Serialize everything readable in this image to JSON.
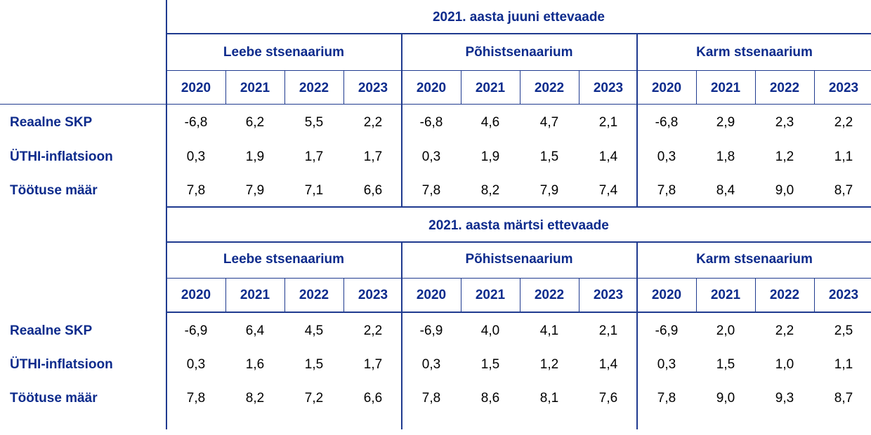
{
  "columns": {
    "years": [
      "2020",
      "2021",
      "2022",
      "2023"
    ],
    "scenarios": [
      "Leebe stsenaarium",
      "Põhistsenaarium",
      "Karm stsenaarium"
    ]
  },
  "row_labels": [
    "Reaalne SKP",
    "ÜTHI-inflatsioon",
    "Töötuse määr"
  ],
  "sections": [
    {
      "title": "2021. aasta juuni ettevaade",
      "rows": [
        [
          "-6,8",
          "6,2",
          "5,5",
          "2,2",
          "-6,8",
          "4,6",
          "4,7",
          "2,1",
          "-6,8",
          "2,9",
          "2,3",
          "2,2"
        ],
        [
          "0,3",
          "1,9",
          "1,7",
          "1,7",
          "0,3",
          "1,9",
          "1,5",
          "1,4",
          "0,3",
          "1,8",
          "1,2",
          "1,1"
        ],
        [
          "7,8",
          "7,9",
          "7,1",
          "6,6",
          "7,8",
          "8,2",
          "7,9",
          "7,4",
          "7,8",
          "8,4",
          "9,0",
          "8,7"
        ]
      ]
    },
    {
      "title": "2021. aasta märtsi ettevaade",
      "rows": [
        [
          "-6,9",
          "6,4",
          "4,5",
          "2,2",
          "-6,9",
          "4,0",
          "4,1",
          "2,1",
          "-6,9",
          "2,0",
          "2,2",
          "2,5"
        ],
        [
          "0,3",
          "1,6",
          "1,5",
          "1,7",
          "0,3",
          "1,5",
          "1,2",
          "1,4",
          "0,3",
          "1,5",
          "1,0",
          "1,1"
        ],
        [
          "7,8",
          "8,2",
          "7,2",
          "6,6",
          "7,8",
          "8,6",
          "8,1",
          "7,6",
          "7,8",
          "9,0",
          "9,3",
          "8,7"
        ]
      ]
    }
  ],
  "colors": {
    "header_text": "#0d2b8c",
    "rule": "#1f3a8f",
    "value_text": "#000000"
  }
}
